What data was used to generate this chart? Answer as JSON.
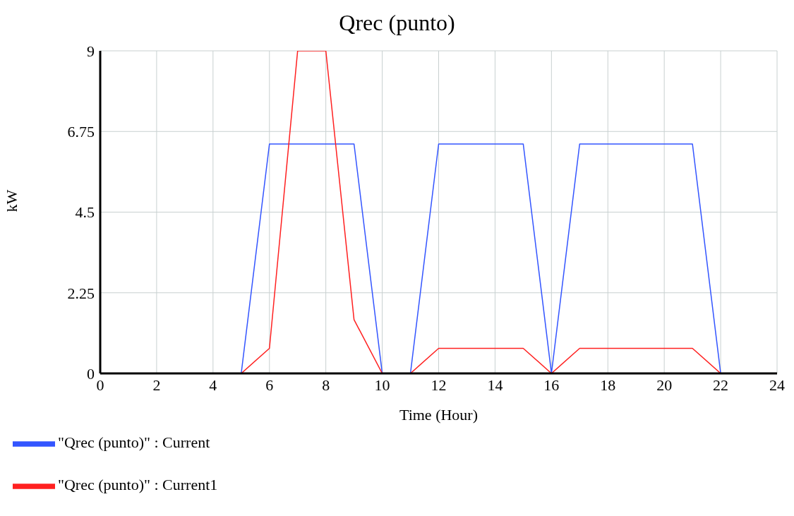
{
  "chart_data": {
    "type": "line",
    "title": "Qrec (punto)",
    "xlabel": "Time (Hour)",
    "ylabel": "kW",
    "x": [
      0,
      5,
      6,
      7,
      8,
      9,
      10,
      11,
      12,
      15,
      16,
      17,
      21,
      22,
      24
    ],
    "series": [
      {
        "name": "\"Qrec (punto)\" : Current",
        "color": "#3355ff",
        "values": [
          0,
          0,
          6.4,
          6.4,
          6.4,
          6.4,
          0,
          0,
          6.4,
          6.4,
          0,
          6.4,
          6.4,
          0,
          0
        ]
      },
      {
        "name": "\"Qrec (punto)\" : Current1",
        "color": "#ff2020",
        "values": [
          0,
          0,
          0.7,
          9,
          9,
          1.5,
          0,
          0,
          0.7,
          0.7,
          0,
          0.7,
          0.7,
          0,
          0
        ]
      }
    ],
    "xlim": [
      0,
      24
    ],
    "xticks": [
      0,
      2,
      4,
      6,
      8,
      10,
      12,
      14,
      16,
      18,
      20,
      22,
      24
    ],
    "ylim": [
      0,
      9
    ],
    "yticks": [
      0,
      2.25,
      4.5,
      6.75,
      9
    ],
    "grid": true,
    "legend": "bottom",
    "marker": "none",
    "line_style": "solid"
  }
}
